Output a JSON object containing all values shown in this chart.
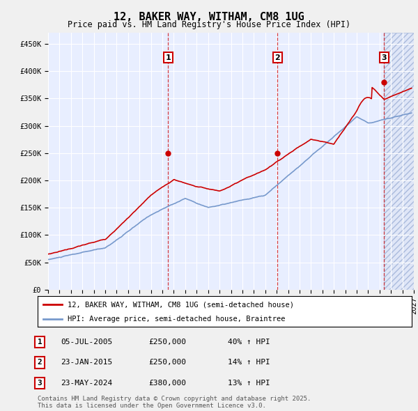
{
  "title": "12, BAKER WAY, WITHAM, CM8 1UG",
  "subtitle": "Price paid vs. HM Land Registry's House Price Index (HPI)",
  "ylim": [
    0,
    470000
  ],
  "xlim_start": 1995.0,
  "xlim_end": 2027.0,
  "yticks": [
    0,
    50000,
    100000,
    150000,
    200000,
    250000,
    300000,
    350000,
    400000,
    450000
  ],
  "ytick_labels": [
    "£0",
    "£50K",
    "£100K",
    "£150K",
    "£200K",
    "£250K",
    "£300K",
    "£350K",
    "£400K",
    "£450K"
  ],
  "fig_bg_color": "#f0f0f0",
  "plot_bg_color": "#e8eeff",
  "grid_color": "#ffffff",
  "red_color": "#cc0000",
  "blue_color": "#7799cc",
  "sale1_date": 2005.51,
  "sale1_price": 250000,
  "sale1_label": "1",
  "sale2_date": 2015.07,
  "sale2_price": 250000,
  "sale2_label": "2",
  "sale3_date": 2024.39,
  "sale3_price": 380000,
  "sale3_label": "3",
  "legend_line1": "12, BAKER WAY, WITHAM, CM8 1UG (semi-detached house)",
  "legend_line2": "HPI: Average price, semi-detached house, Braintree",
  "table_data": [
    {
      "num": "1",
      "date": "05-JUL-2005",
      "price": "£250,000",
      "change": "40% ↑ HPI"
    },
    {
      "num": "2",
      "date": "23-JAN-2015",
      "price": "£250,000",
      "change": "14% ↑ HPI"
    },
    {
      "num": "3",
      "date": "23-MAY-2024",
      "price": "£380,000",
      "change": "13% ↑ HPI"
    }
  ],
  "footer": "Contains HM Land Registry data © Crown copyright and database right 2025.\nThis data is licensed under the Open Government Licence v3.0."
}
